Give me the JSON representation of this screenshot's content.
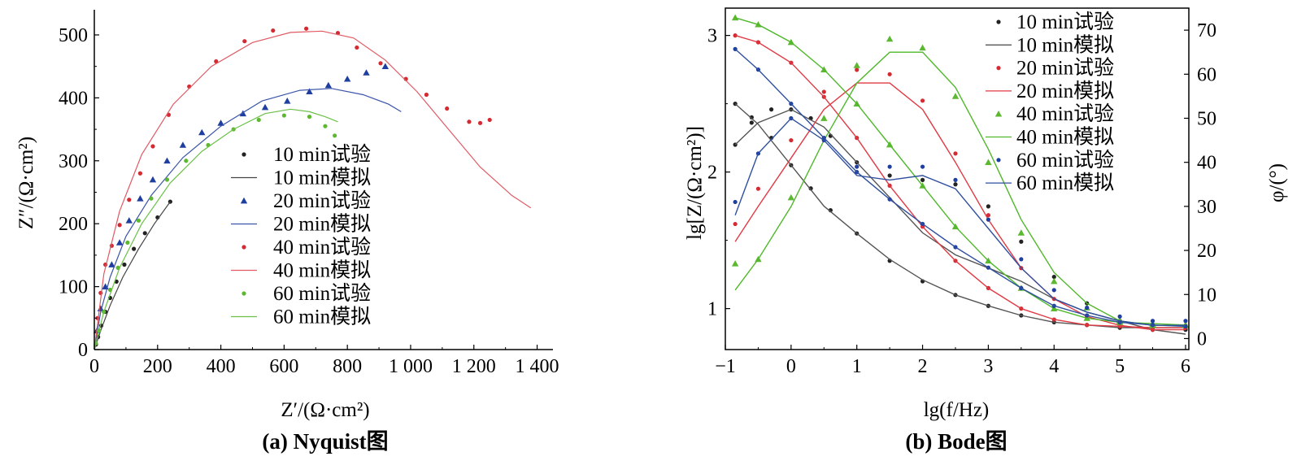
{
  "chart_data": [
    {
      "type": "scatter",
      "subtype": "nyquist",
      "caption": "(a) Nyquist图",
      "xlabel": "Z′/(Ω·cm²)",
      "ylabel": "Z″/(Ω·cm²)",
      "xlim": [
        0,
        1450
      ],
      "ylim": [
        0,
        540
      ],
      "xticks": [
        0,
        200,
        400,
        600,
        800,
        1000,
        1200,
        1400
      ],
      "xtick_labels": [
        "0",
        "200",
        "400",
        "600",
        "800",
        "1 000",
        "1 200",
        "1 400"
      ],
      "yticks": [
        0,
        100,
        200,
        300,
        400,
        500
      ],
      "ytick_labels": [
        "0",
        "100",
        "200",
        "300",
        "400",
        "500"
      ],
      "legend_position": "center",
      "series": [
        {
          "name": "10 min试验",
          "kind": "points",
          "marker": "dot",
          "color": "#222222",
          "x": [
            5,
            12,
            22,
            35,
            50,
            70,
            95,
            125,
            160,
            200,
            240
          ],
          "y": [
            8,
            20,
            38,
            60,
            82,
            108,
            135,
            160,
            185,
            210,
            235
          ]
        },
        {
          "name": "10 min模拟",
          "kind": "line",
          "color": "#444444",
          "x": [
            0,
            20,
            50,
            90,
            140,
            190,
            240
          ],
          "y": [
            0,
            30,
            70,
            115,
            160,
            200,
            235
          ]
        },
        {
          "name": "20 min试验",
          "kind": "points",
          "marker": "triangle",
          "color": "#1f3fa0",
          "x": [
            8,
            20,
            35,
            55,
            80,
            110,
            145,
            185,
            230,
            280,
            340,
            400,
            470,
            540,
            610,
            680,
            740,
            800,
            860,
            920
          ],
          "y": [
            30,
            65,
            100,
            135,
            170,
            205,
            240,
            270,
            300,
            325,
            345,
            360,
            375,
            385,
            395,
            410,
            420,
            430,
            440,
            450
          ]
        },
        {
          "name": "20 min模拟",
          "kind": "line",
          "color": "#3a55a8",
          "x": [
            0,
            20,
            50,
            100,
            180,
            280,
            400,
            530,
            650,
            750,
            850,
            930,
            970
          ],
          "y": [
            0,
            60,
            115,
            180,
            245,
            305,
            355,
            395,
            412,
            415,
            405,
            390,
            378
          ]
        },
        {
          "name": "40 min试验",
          "kind": "points",
          "marker": "dot",
          "color": "#d42a32",
          "x": [
            10,
            20,
            35,
            55,
            80,
            110,
            145,
            185,
            235,
            300,
            385,
            475,
            565,
            670,
            770,
            830,
            905,
            985,
            1050,
            1115,
            1185,
            1220,
            1250
          ],
          "y": [
            50,
            90,
            135,
            165,
            198,
            238,
            280,
            323,
            373,
            418,
            458,
            490,
            507,
            510,
            503,
            480,
            455,
            430,
            405,
            383,
            362,
            360,
            365
          ]
        },
        {
          "name": "40 min模拟",
          "kind": "line",
          "color": "#e05a64",
          "x": [
            0,
            30,
            80,
            150,
            250,
            370,
            500,
            620,
            720,
            820,
            920,
            1020,
            1120,
            1220,
            1320,
            1380
          ],
          "y": [
            0,
            120,
            220,
            310,
            390,
            450,
            488,
            504,
            506,
            495,
            460,
            410,
            350,
            290,
            245,
            225
          ]
        },
        {
          "name": "60 min试验",
          "kind": "points",
          "marker": "dot",
          "color": "#5cb830",
          "x": [
            5,
            15,
            30,
            50,
            75,
            105,
            140,
            180,
            230,
            290,
            360,
            440,
            520,
            600,
            680,
            730,
            760
          ],
          "y": [
            10,
            30,
            60,
            95,
            130,
            170,
            205,
            240,
            270,
            300,
            325,
            350,
            365,
            372,
            370,
            355,
            340
          ]
        },
        {
          "name": "60 min模拟",
          "kind": "line",
          "color": "#6cc048",
          "x": [
            0,
            30,
            80,
            150,
            240,
            340,
            440,
            540,
            620,
            680,
            730,
            770
          ],
          "y": [
            0,
            60,
            130,
            200,
            265,
            315,
            350,
            375,
            382,
            378,
            370,
            362
          ]
        }
      ]
    },
    {
      "type": "line",
      "subtype": "bode",
      "caption": "(b) Bode图",
      "xlabel": "lg(f/Hz)",
      "ylabel": "lg[Z/(Ω·cm²)]",
      "ylabel_right": "φ/(°)",
      "xlim": [
        -1,
        6.05
      ],
      "ylim": [
        0.7,
        3.2
      ],
      "ylim_right": [
        -2.5,
        75
      ],
      "xticks": [
        -1,
        0,
        1,
        2,
        3,
        4,
        5,
        6
      ],
      "xtick_labels": [
        "−1",
        "0",
        "1",
        "2",
        "3",
        "4",
        "5",
        "6"
      ],
      "yticks": [
        1,
        2,
        3
      ],
      "ytick_labels": [
        "1",
        "2",
        "3"
      ],
      "yticks_right": [
        0,
        10,
        20,
        30,
        40,
        50,
        60,
        70
      ],
      "ytick_labels_right": [
        "0",
        "10",
        "20",
        "30",
        "40",
        "50",
        "60",
        "70"
      ],
      "legend_position": "top-right",
      "series": [
        {
          "name": "10 min试验",
          "kind": "points",
          "marker": "dot",
          "color": "#222222",
          "axis": "left",
          "x": [
            -0.85,
            -0.6,
            -0.3,
            0,
            0.3,
            0.6,
            1,
            1.5,
            2,
            2.5,
            3,
            3.5,
            4,
            4.5,
            5,
            5.5,
            6
          ],
          "y": [
            2.5,
            2.4,
            2.25,
            2.05,
            1.88,
            1.72,
            1.55,
            1.35,
            1.2,
            1.1,
            1.02,
            0.95,
            0.9,
            0.88,
            0.86,
            0.86,
            0.85
          ]
        },
        {
          "name": "10 min试验",
          "kind": "points",
          "marker": "dot",
          "color": "#222222",
          "axis": "right",
          "x": [
            -0.85,
            -0.6,
            -0.3,
            0,
            0.3,
            0.6,
            1,
            1.5,
            2,
            2.5,
            3,
            3.5,
            4,
            4.5,
            5,
            5.5,
            6
          ],
          "y": [
            44,
            49,
            52,
            52,
            50,
            46,
            40,
            37,
            36,
            35,
            30,
            22,
            14,
            8,
            4,
            2,
            2
          ]
        },
        {
          "name": "10 min模拟",
          "kind": "line",
          "color": "#555555",
          "axis": "left",
          "x": [
            -0.85,
            -0.5,
            0,
            0.5,
            1,
            1.5,
            2,
            2.5,
            3,
            3.5,
            4,
            4.5,
            5,
            5.5,
            6
          ],
          "y": [
            2.5,
            2.35,
            2.05,
            1.75,
            1.55,
            1.36,
            1.21,
            1.1,
            1.02,
            0.95,
            0.9,
            0.88,
            0.86,
            0.86,
            0.86
          ]
        },
        {
          "name": "10 min模拟",
          "kind": "line",
          "color": "#555555",
          "axis": "right",
          "x": [
            -0.85,
            -0.5,
            0,
            0.5,
            1,
            1.5,
            2,
            2.5,
            3,
            3.5,
            4,
            4.5,
            5,
            5.5,
            6
          ],
          "y": [
            44,
            49,
            52,
            48,
            40,
            32,
            24,
            19,
            16,
            13,
            9,
            6,
            4,
            2,
            1
          ]
        },
        {
          "name": "20 min试验",
          "kind": "points",
          "marker": "dot",
          "color": "#d42a32",
          "axis": "left",
          "x": [
            -0.85,
            -0.5,
            0,
            0.5,
            1,
            1.5,
            2,
            2.5,
            3,
            3.5,
            4,
            4.5,
            5,
            5.5,
            6
          ],
          "y": [
            3.0,
            2.95,
            2.8,
            2.55,
            2.25,
            1.9,
            1.6,
            1.35,
            1.15,
            1.0,
            0.92,
            0.88,
            0.87,
            0.86,
            0.86
          ]
        },
        {
          "name": "20 min试验",
          "kind": "points",
          "marker": "dot",
          "color": "#d42a32",
          "axis": "right",
          "x": [
            -0.85,
            -0.5,
            0,
            0.5,
            1,
            1.5,
            2,
            2.5,
            3,
            3.5,
            4,
            4.5,
            5,
            5.5,
            6
          ],
          "y": [
            26,
            34,
            45,
            56,
            61,
            60,
            54,
            42,
            28,
            16,
            9,
            5,
            3,
            2,
            3
          ]
        },
        {
          "name": "20 min模拟",
          "kind": "line",
          "color": "#e03a44",
          "axis": "left",
          "x": [
            -0.85,
            -0.5,
            0,
            0.5,
            1,
            1.5,
            2,
            2.5,
            3,
            3.5,
            4,
            4.5,
            5,
            5.5,
            6
          ],
          "y": [
            3.0,
            2.95,
            2.8,
            2.55,
            2.25,
            1.9,
            1.6,
            1.35,
            1.15,
            1.0,
            0.92,
            0.88,
            0.87,
            0.86,
            0.86
          ]
        },
        {
          "name": "20 min模拟",
          "kind": "line",
          "color": "#e03a44",
          "axis": "right",
          "x": [
            -0.85,
            -0.5,
            0,
            0.5,
            1,
            1.5,
            2,
            2.5,
            3,
            3.5,
            4,
            4.5,
            5,
            5.5,
            6
          ],
          "y": [
            22,
            30,
            41,
            52,
            58,
            58,
            52,
            40,
            27,
            16,
            9,
            5,
            3,
            2,
            2
          ]
        },
        {
          "name": "40 min试验",
          "kind": "points",
          "marker": "triangle",
          "color": "#5cb830",
          "axis": "left",
          "x": [
            -0.85,
            -0.5,
            0,
            0.5,
            1,
            1.5,
            2,
            2.5,
            3,
            3.5,
            4,
            4.5,
            5,
            5.5,
            6
          ],
          "y": [
            3.13,
            3.08,
            2.95,
            2.75,
            2.5,
            2.2,
            1.9,
            1.6,
            1.35,
            1.15,
            1.0,
            0.93,
            0.9,
            0.89,
            0.88
          ]
        },
        {
          "name": "40 min试验",
          "kind": "points",
          "marker": "triangle",
          "color": "#5cb830",
          "axis": "right",
          "x": [
            -0.85,
            -0.5,
            0,
            0.5,
            1,
            1.5,
            2,
            2.5,
            3,
            3.5,
            4,
            4.5,
            5,
            5.5,
            6
          ],
          "y": [
            17,
            18,
            32,
            50,
            62,
            68,
            66,
            55,
            40,
            24,
            13,
            7,
            4,
            3,
            3
          ]
        },
        {
          "name": "40 min模拟",
          "kind": "line",
          "color": "#4fb82a",
          "axis": "left",
          "x": [
            -0.85,
            -0.5,
            0,
            0.5,
            1,
            1.5,
            2,
            2.5,
            3,
            3.5,
            4,
            4.5,
            5,
            5.5,
            6
          ],
          "y": [
            3.13,
            3.08,
            2.95,
            2.75,
            2.5,
            2.2,
            1.9,
            1.6,
            1.35,
            1.15,
            1.0,
            0.93,
            0.9,
            0.89,
            0.88
          ]
        },
        {
          "name": "40 min模拟",
          "kind": "line",
          "color": "#4fb82a",
          "axis": "right",
          "x": [
            -0.85,
            -0.5,
            0,
            0.5,
            1,
            1.5,
            2,
            2.5,
            3,
            3.5,
            4,
            4.5,
            5,
            5.5,
            6
          ],
          "y": [
            11,
            18,
            30,
            45,
            58,
            65,
            65,
            57,
            43,
            27,
            15,
            8,
            4,
            3,
            3
          ]
        },
        {
          "name": "60 min试验",
          "kind": "points",
          "marker": "dot",
          "color": "#1f3fa0",
          "axis": "left",
          "x": [
            -0.85,
            -0.5,
            0,
            0.5,
            1,
            1.5,
            2,
            2.5,
            3,
            3.5,
            4,
            4.5,
            5,
            5.5,
            6
          ],
          "y": [
            2.9,
            2.75,
            2.5,
            2.25,
            2.0,
            1.8,
            1.62,
            1.45,
            1.3,
            1.15,
            1.02,
            0.95,
            0.9,
            0.88,
            0.87
          ]
        },
        {
          "name": "60 min试验",
          "kind": "points",
          "marker": "dot",
          "color": "#1f3fa0",
          "axis": "right",
          "x": [
            -0.85,
            -0.5,
            0,
            0.5,
            1,
            1.5,
            2,
            2.5,
            3,
            3.5,
            4,
            4.5,
            5,
            5.5,
            6
          ],
          "y": [
            31,
            42,
            50,
            45,
            39,
            39,
            39,
            36,
            27,
            18,
            11,
            7,
            5,
            4,
            4
          ]
        },
        {
          "name": "60 min模拟",
          "kind": "line",
          "color": "#2f4f9f",
          "axis": "left",
          "x": [
            -0.85,
            -0.5,
            0,
            0.5,
            1,
            1.5,
            2,
            2.5,
            3,
            3.5,
            4,
            4.5,
            5,
            5.5,
            6
          ],
          "y": [
            2.9,
            2.75,
            2.5,
            2.25,
            2.0,
            1.8,
            1.62,
            1.45,
            1.3,
            1.15,
            1.02,
            0.95,
            0.9,
            0.88,
            0.87
          ]
        },
        {
          "name": "60 min模拟",
          "kind": "line",
          "color": "#2f4f9f",
          "axis": "right",
          "x": [
            -0.85,
            -0.5,
            0,
            0.5,
            1,
            1.5,
            2,
            2.5,
            3,
            3.5,
            4,
            4.5,
            5,
            5.5,
            6
          ],
          "y": [
            28,
            42,
            50,
            45,
            37,
            36,
            37,
            34,
            25,
            16,
            9,
            6,
            4,
            3,
            3
          ]
        }
      ]
    }
  ]
}
